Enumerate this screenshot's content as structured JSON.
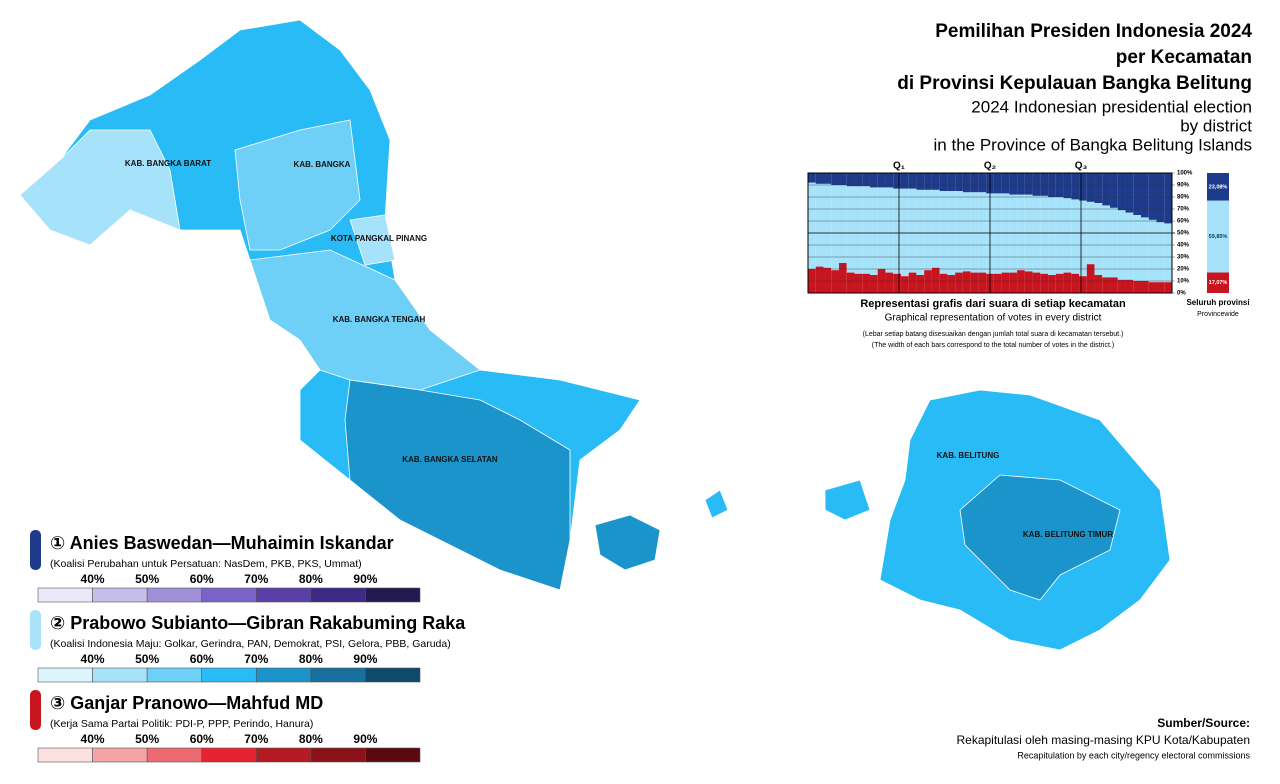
{
  "header": {
    "title_lines": [
      "Pemilihan Presiden Indonesia 2024",
      "per Kecamatan",
      "di Provinsi Kepulauan Bangka Belitung"
    ],
    "subtitle_lines": [
      "2024 Indonesian presidential election",
      "by district",
      "in the Province of Bangka Belitung Islands"
    ]
  },
  "regions": [
    "KAB. BANGKA BARAT",
    "KAB. BANGKA",
    "KOTA PANGKAL PINANG",
    "KAB. BANGKA TENGAH",
    "KAB. BANGKA SELATAN",
    "KAB. BELITUNG",
    "KAB. BELITUNG TIMUR"
  ],
  "chart": {
    "title": "Representasi grafis dari suara di setiap kecamatan",
    "subtitle": "Graphical representation of votes in every district",
    "notes": [
      "(Lebar setiap batang disesuaikan dengan jumlah total suara di kecamatan tersebut.)",
      "(The width of each bars correspond to the total number of votes in the district.)"
    ],
    "quartiles": [
      "Q₁",
      "Q₂",
      "Q₃"
    ],
    "ylim": [
      0,
      100
    ],
    "yticks": [
      {
        "value": 0,
        "label": "0%"
      },
      {
        "value": 10,
        "label": "10%"
      },
      {
        "value": 20,
        "label": "20%"
      },
      {
        "value": 30,
        "label": "30%"
      },
      {
        "value": 40,
        "label": "40%"
      },
      {
        "value": 50,
        "label": "50%"
      },
      {
        "value": 60,
        "label": "60%"
      },
      {
        "value": 70,
        "label": "70%"
      },
      {
        "value": 80,
        "label": "80%"
      },
      {
        "value": 90,
        "label": "90%"
      },
      {
        "value": 100,
        "label": "100%"
      }
    ],
    "districts": {
      "anies": [
        8,
        9,
        9,
        10,
        10,
        11,
        11,
        11,
        12,
        12,
        12,
        13,
        13,
        13,
        14,
        14,
        14,
        15,
        15,
        15,
        16,
        16,
        16,
        17,
        17,
        17,
        18,
        18,
        18,
        19,
        19,
        20,
        20,
        21,
        22,
        23,
        24,
        25,
        27,
        29,
        31,
        33,
        35,
        37,
        39,
        41,
        42
      ],
      "ganjar": [
        20,
        22,
        21,
        19,
        25,
        17,
        16,
        16,
        15,
        20,
        17,
        16,
        14,
        17,
        15,
        19,
        21,
        16,
        15,
        17,
        18,
        17,
        17,
        16,
        16,
        17,
        17,
        19,
        18,
        17,
        16,
        15,
        16,
        17,
        16,
        14,
        24,
        15,
        13,
        13,
        11,
        11,
        10,
        10,
        9,
        9,
        9
      ]
    },
    "province": {
      "label": "Seluruh provinsi",
      "sublabel": "Provincewide",
      "values": [
        23.08,
        59.85,
        17.07
      ],
      "value_labels": [
        "23,08%",
        "59,85%",
        "17,07%"
      ]
    }
  },
  "legend": {
    "scale_labels": [
      "40%",
      "50%",
      "60%",
      "70%",
      "80%",
      "90%"
    ],
    "candidates": [
      {
        "name": "① Anies Baswedan—Muhaimin Iskandar",
        "coalition": "(Koalisi Perubahan untuk Persatuan: NasDem, PKB, PKS, Ummat)",
        "color": "#1e3a8a",
        "scale": [
          "#eae8f7",
          "#c6bde8",
          "#9f8fd8",
          "#7a63c6",
          "#5a3fa8",
          "#3d2a84",
          "#241a52"
        ]
      },
      {
        "name": "② Prabowo Subianto—Gibran Rakabuming Raka",
        "coalition": "(Koalisi Indonesia Maju: Golkar, Gerindra, PAN, Demokrat, PSI, Gelora, PBB, Garuda)",
        "color": "#a9e3f9",
        "scale": [
          "#dcf4fd",
          "#a6e3fa",
          "#6fd0f7",
          "#29bbf5",
          "#1b94cc",
          "#166f9c",
          "#0e4a6b"
        ]
      },
      {
        "name": "③ Ganjar Pranowo—Mahfud MD",
        "coalition": "(Kerja Sama Partai Politik: PDI-P, PPP, Perindo, Hanura)",
        "color": "#c8141e",
        "scale": [
          "#fde0e0",
          "#f4a3a6",
          "#ec6a70",
          "#e5232e",
          "#b51a22",
          "#8a1218",
          "#5a0a0e"
        ]
      }
    ]
  },
  "source": {
    "heading": "Sumber/Source:",
    "lines": [
      "Rekapitulasi oleh masing-masing KPU Kota/Kabupaten",
      "Recapitulation by each city/regency electoral commissions"
    ]
  }
}
